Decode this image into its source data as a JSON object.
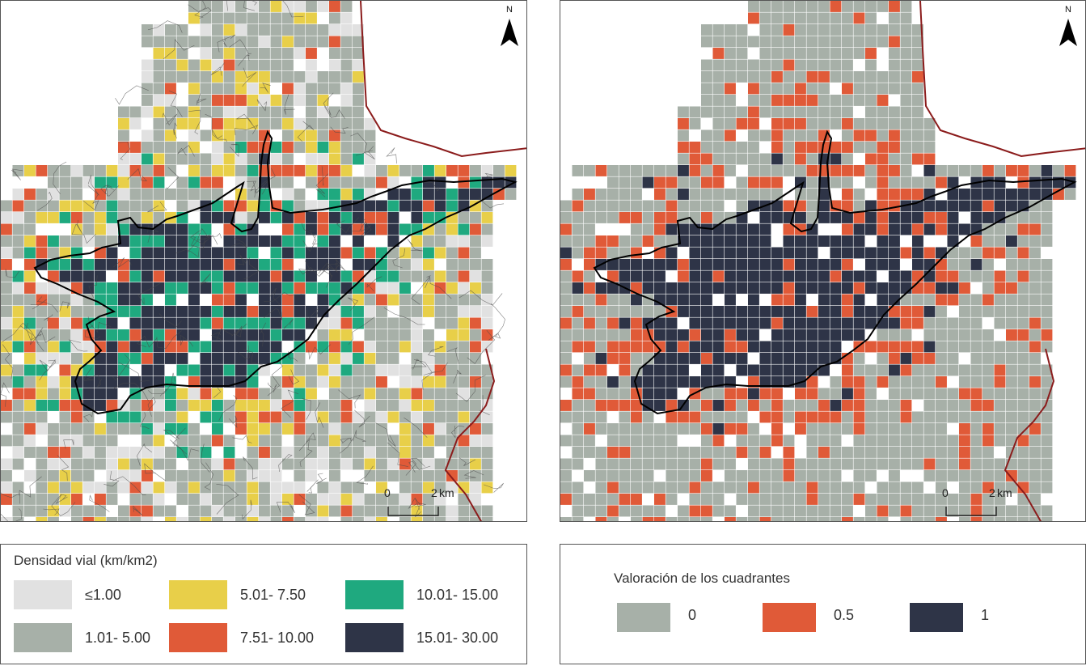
{
  "left_map": {
    "north_label": "N",
    "scale_labels": [
      "0",
      "2",
      "km"
    ]
  },
  "right_map": {
    "north_label": "N",
    "scale_labels": [
      "0",
      "2",
      "km"
    ]
  },
  "legend_left": {
    "title": "Densidad vial (km/km2)",
    "classes": [
      {
        "label": "≤1.00",
        "color": "#e1e1e1"
      },
      {
        "label": "1.01- 5.00",
        "color": "#a7b0a8"
      },
      {
        "label": "5.01- 7.50",
        "color": "#e8cf49"
      },
      {
        "label": "7.51- 10.00",
        "color": "#e05a38"
      },
      {
        "label": "10.01- 15.00",
        "color": "#1fa97f"
      },
      {
        "label": "15.01- 30.00",
        "color": "#2e3447"
      }
    ]
  },
  "legend_right": {
    "title": "Valoración de los cuadrantes",
    "classes": [
      {
        "label": "0",
        "color": "#a7b0a8"
      },
      {
        "label": "0.5",
        "color": "#e05a38"
      },
      {
        "label": "1",
        "color": "#2e3447"
      }
    ]
  },
  "colors": {
    "boundary": "#8b1c1c",
    "urban_outline": "#000000",
    "grid_line": "#ffffff"
  }
}
